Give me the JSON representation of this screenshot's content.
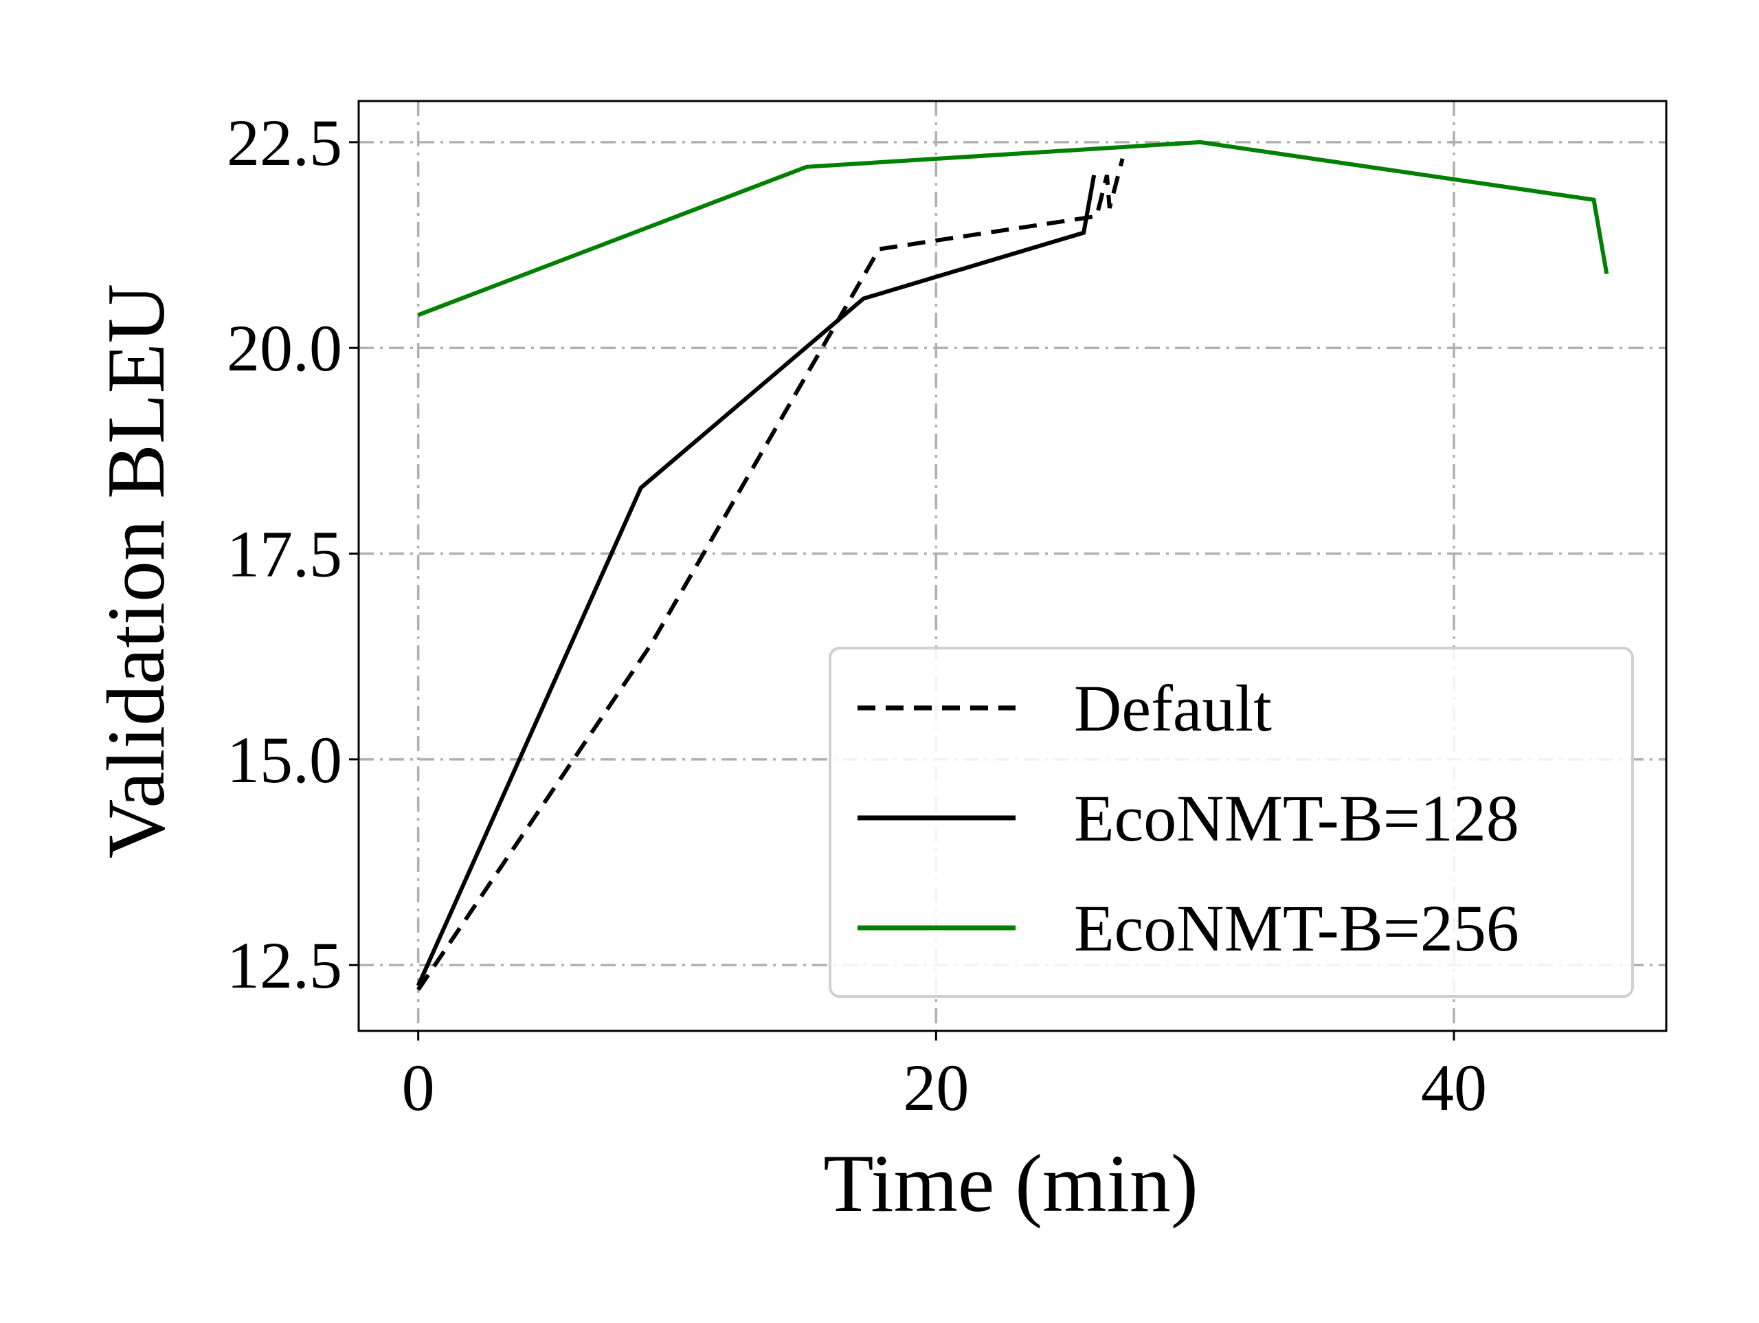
{
  "chart_data": {
    "type": "line",
    "title": "",
    "xlabel": "Time (min)",
    "ylabel": "Validation BLEU",
    "xlim": [
      -2.3,
      48.2
    ],
    "ylim": [
      11.7,
      23.0
    ],
    "x_ticks": [
      0,
      20,
      40
    ],
    "x_tick_labels": [
      "0",
      "20",
      "40"
    ],
    "y_ticks": [
      12.5,
      15.0,
      17.5,
      20.0,
      22.5
    ],
    "y_tick_labels": [
      "12.5",
      "15.0",
      "17.5",
      "20.0",
      "22.5"
    ],
    "grid": true,
    "legend_position": "lower-right",
    "series": [
      {
        "name": "Default",
        "color": "#000000",
        "style": "dashed",
        "x": [
          0,
          9.0,
          17.8,
          26.2,
          26.6,
          26.7,
          27.2
        ],
        "y": [
          12.2,
          16.4,
          21.2,
          21.6,
          22.1,
          21.7,
          22.3
        ]
      },
      {
        "name": "EcoNMT-B=128",
        "color": "#000000",
        "style": "solid",
        "x": [
          0,
          8.6,
          17.2,
          25.7,
          26.1
        ],
        "y": [
          12.25,
          18.3,
          20.6,
          21.4,
          22.1
        ]
      },
      {
        "name": "EcoNMT-B=256",
        "color": "#008000",
        "style": "solid",
        "x": [
          0,
          15.0,
          30.2,
          45.4,
          45.9
        ],
        "y": [
          20.4,
          22.2,
          22.5,
          21.8,
          20.9
        ]
      }
    ]
  }
}
